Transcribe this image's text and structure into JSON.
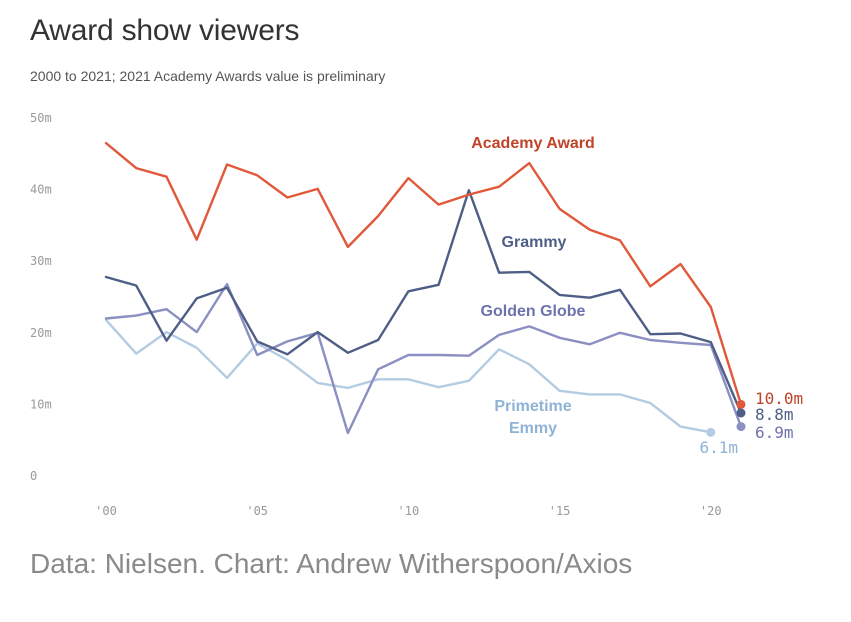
{
  "title": "Award show viewers",
  "subtitle": "2000 to 2021; 2021 Academy Awards value is preliminary",
  "source": "Data: Nielsen. Chart: Andrew Witherspoon/Axios",
  "chart_data": {
    "type": "line",
    "title": "Award show viewers",
    "subtitle": "2000 to 2021; 2021 Academy Awards value is preliminary",
    "xlabel": "",
    "ylabel": "",
    "xlim": [
      2000,
      2021
    ],
    "ylim": [
      0,
      50
    ],
    "grid": false,
    "y_ticks": [
      {
        "value": 0,
        "label": "0"
      },
      {
        "value": 10,
        "label": "10m"
      },
      {
        "value": 20,
        "label": "20m"
      },
      {
        "value": 30,
        "label": "30m"
      },
      {
        "value": 40,
        "label": "40m"
      },
      {
        "value": 50,
        "label": "50m"
      }
    ],
    "x_ticks": [
      {
        "value": 2000,
        "label": "'00"
      },
      {
        "value": 2005,
        "label": "'05"
      },
      {
        "value": 2010,
        "label": "'10"
      },
      {
        "value": 2015,
        "label": "'15"
      },
      {
        "value": 2020,
        "label": "'20"
      }
    ],
    "x": [
      2000,
      2001,
      2002,
      2003,
      2004,
      2005,
      2006,
      2007,
      2008,
      2009,
      2010,
      2011,
      2012,
      2013,
      2014,
      2015,
      2016,
      2017,
      2018,
      2019,
      2020,
      2021
    ],
    "series": [
      {
        "name": "Academy Award",
        "color": "#e0593a",
        "label_color": "#c0432a",
        "values": [
          46.5,
          43.0,
          41.8,
          33.0,
          43.5,
          42.0,
          38.9,
          40.1,
          32.0,
          36.3,
          41.6,
          37.9,
          39.3,
          40.4,
          43.7,
          37.3,
          34.4,
          32.9,
          26.5,
          29.6,
          23.6,
          10.0
        ],
        "end_label": "10.0m"
      },
      {
        "name": "Grammy",
        "color": "#4f5e87",
        "label_color": "#4f5e87",
        "values": [
          27.8,
          26.6,
          18.9,
          24.8,
          26.3,
          18.8,
          17.0,
          20.1,
          17.2,
          19.0,
          25.8,
          26.7,
          39.9,
          28.4,
          28.5,
          25.3,
          24.9,
          26.0,
          19.8,
          19.9,
          18.7,
          8.8
        ],
        "end_label": "8.8m"
      },
      {
        "name": "Golden Globe",
        "color": "#8b8fc2",
        "label_color": "#6e72ad",
        "values": [
          22.0,
          22.4,
          23.3,
          20.1,
          26.8,
          16.9,
          18.8,
          20.0,
          6.0,
          14.9,
          16.9,
          16.9,
          16.8,
          19.7,
          20.9,
          19.3,
          18.4,
          20.0,
          19.0,
          18.6,
          18.3,
          6.9
        ],
        "end_label": "6.9m"
      },
      {
        "name": "Primetime Emmy",
        "name_lines": [
          "Primetime",
          "Emmy"
        ],
        "color": "#b4cce3",
        "label_color": "#8fb3d6",
        "values": [
          21.8,
          17.1,
          20.1,
          17.9,
          13.7,
          18.5,
          16.2,
          13.0,
          12.3,
          13.5,
          13.5,
          12.4,
          13.3,
          17.7,
          15.6,
          11.9,
          11.4,
          11.4,
          10.2,
          6.9,
          6.1,
          null
        ],
        "end_label": "6.1m"
      }
    ]
  }
}
